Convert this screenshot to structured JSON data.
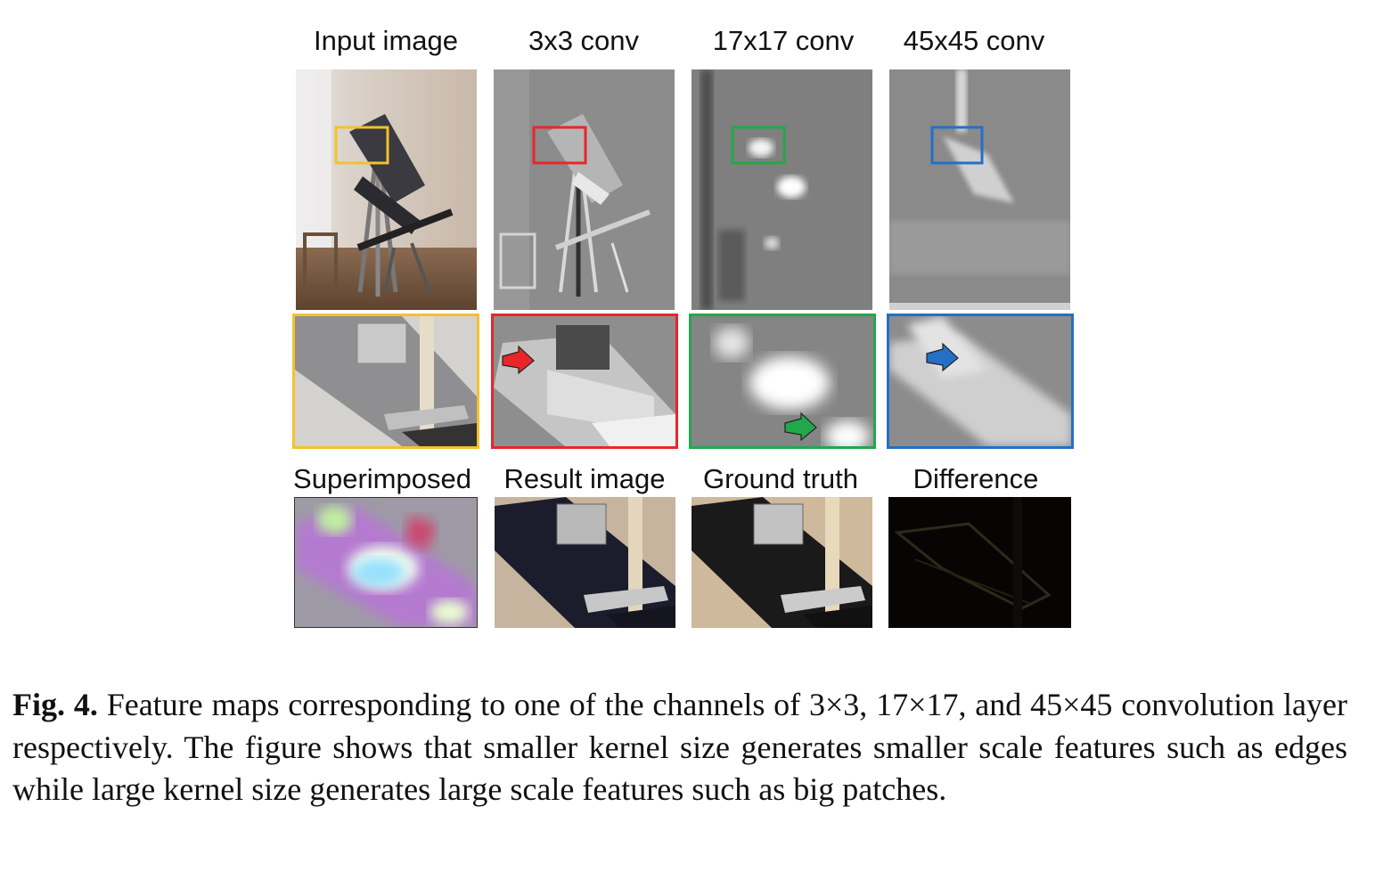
{
  "figure": {
    "row1_labels": [
      "Input image",
      "3x3 conv",
      "17x17 conv",
      "45x45 conv"
    ],
    "row3_labels": [
      "Superimposed",
      "Result image",
      "Ground truth",
      "Difference"
    ],
    "box_colors": {
      "input": "#f2c12e",
      "conv3": "#e8262a",
      "conv17": "#22a84a",
      "conv45": "#2370c6"
    }
  },
  "caption": {
    "label": "Fig. 4.",
    "text": "Feature maps corresponding to one of the channels of 3×3, 17×17, and 45×45 convolution layer respectively. The figure shows that smaller kernel size generates smaller scale features such as edges while large kernel size generates large scale features such as big patches."
  }
}
